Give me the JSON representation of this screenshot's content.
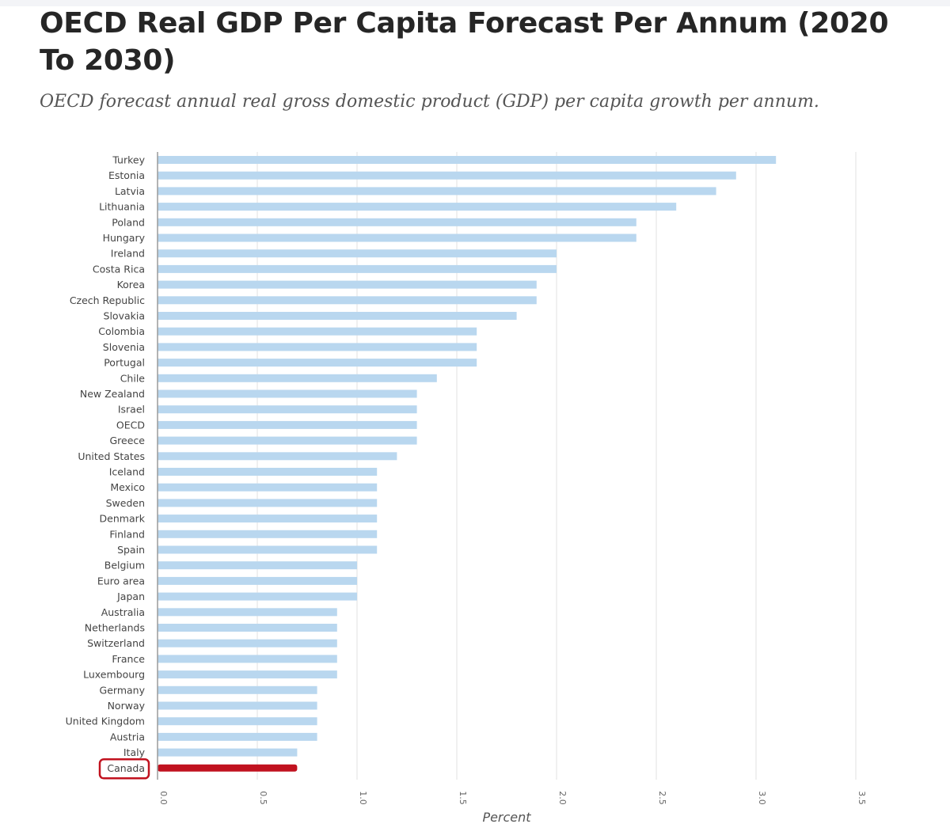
{
  "header": {
    "title": "OECD Real GDP Per Capita Forecast Per Annum (2020 To 2030)",
    "subtitle": "OECD forecast annual real gross domestic product (GDP) per capita growth per annum."
  },
  "colors": {
    "bar": "#b9d7ef",
    "highlight_bar": "#c1121f",
    "highlight_box": "#c1121f",
    "grid": "#e1e1e1",
    "axis": "#9a9a9a"
  },
  "chart_data": {
    "type": "bar",
    "orientation": "horizontal",
    "title": "OECD Real GDP Per Capita Forecast Per Annum (2020 To 2030)",
    "subtitle": "OECD forecast annual real gross domestic product (GDP) per capita growth per annum.",
    "xlabel": "Percent",
    "ylabel": "",
    "xlim": [
      0,
      3.5
    ],
    "ticks": [
      "0.0",
      "0.5",
      "1.0",
      "1.5",
      "2.0",
      "2.5",
      "3.0",
      "3.5"
    ],
    "grid": true,
    "highlight": "Canada",
    "categories": [
      "Turkey",
      "Estonia",
      "Latvia",
      "Lithuania",
      "Poland",
      "Hungary",
      "Ireland",
      "Costa Rica",
      "Korea",
      "Czech Republic",
      "Slovakia",
      "Colombia",
      "Slovenia",
      "Portugal",
      "Chile",
      "New Zealand",
      "Israel",
      "OECD",
      "Greece",
      "United States",
      "Iceland",
      "Mexico",
      "Sweden",
      "Denmark",
      "Finland",
      "Spain",
      "Belgium",
      "Euro area",
      "Japan",
      "Australia",
      "Netherlands",
      "Switzerland",
      "France",
      "Luxembourg",
      "Germany",
      "Norway",
      "United Kingdom",
      "Austria",
      "Italy",
      "Canada"
    ],
    "values": [
      3.1,
      2.9,
      2.8,
      2.6,
      2.4,
      2.4,
      2.0,
      2.0,
      1.9,
      1.9,
      1.8,
      1.6,
      1.6,
      1.6,
      1.4,
      1.3,
      1.3,
      1.3,
      1.3,
      1.2,
      1.1,
      1.1,
      1.1,
      1.1,
      1.1,
      1.1,
      1.0,
      1.0,
      1.0,
      0.9,
      0.9,
      0.9,
      0.9,
      0.9,
      0.8,
      0.8,
      0.8,
      0.8,
      0.7,
      0.7
    ]
  }
}
